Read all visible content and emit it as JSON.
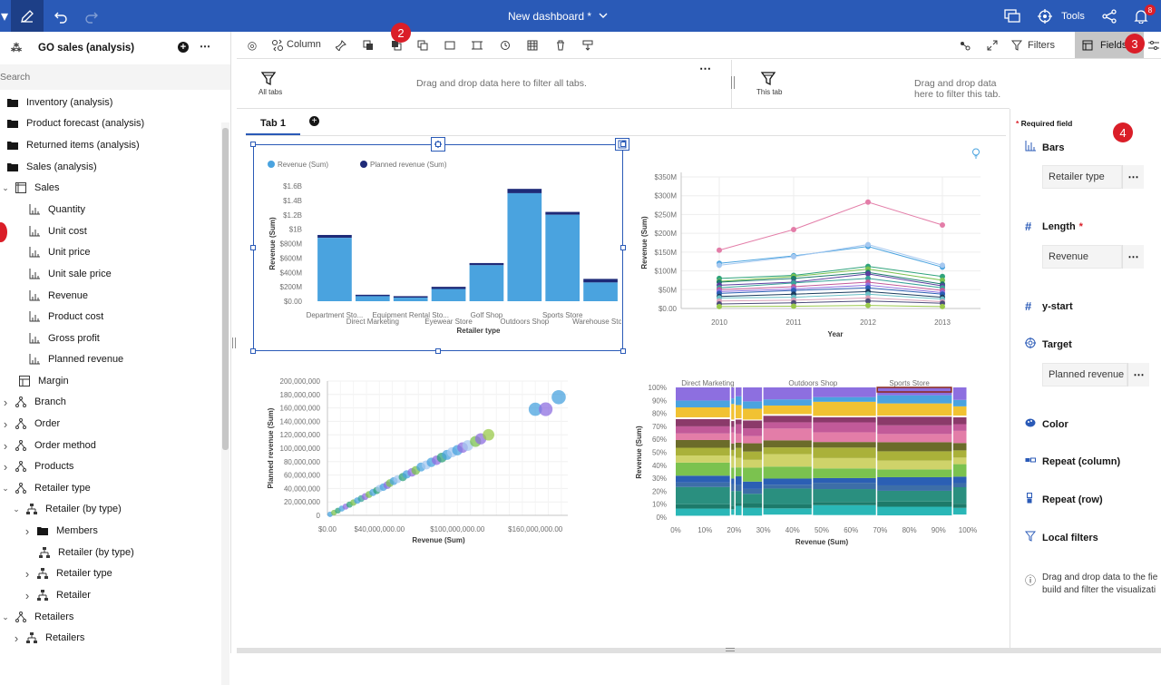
{
  "topbar": {
    "title": "New dashboard *",
    "tools_label": "Tools",
    "notification_count": "8"
  },
  "left_panel": {
    "source_title": "GO sales (analysis)",
    "search_placeholder": "Search",
    "tree": [
      {
        "label": "Inventory (analysis)",
        "icon": "folder-icon"
      },
      {
        "label": "Product forecast (analysis)",
        "icon": "folder-icon"
      },
      {
        "label": "Returned items (analysis)",
        "icon": "folder-icon"
      },
      {
        "label": "Sales (analysis)",
        "icon": "folder-icon"
      },
      {
        "label": "Sales",
        "icon": "table-icon"
      },
      {
        "label": "Quantity",
        "icon": "measure-icon"
      },
      {
        "label": "Unit cost",
        "icon": "measure-icon"
      },
      {
        "label": "Unit price",
        "icon": "measure-icon"
      },
      {
        "label": "Unit sale price",
        "icon": "measure-icon"
      },
      {
        "label": "Revenue",
        "icon": "measure-icon"
      },
      {
        "label": "Product cost",
        "icon": "measure-icon"
      },
      {
        "label": "Gross profit",
        "icon": "measure-icon"
      },
      {
        "label": "Planned revenue",
        "icon": "measure-icon"
      },
      {
        "label": "Margin",
        "icon": "calc-icon"
      },
      {
        "label": "Branch",
        "icon": "hierarchy-icon"
      },
      {
        "label": "Order",
        "icon": "hierarchy-icon"
      },
      {
        "label": "Order method",
        "icon": "hierarchy-icon"
      },
      {
        "label": "Products",
        "icon": "hierarchy-icon"
      },
      {
        "label": "Retailer type",
        "icon": "hierarchy-icon"
      },
      {
        "label": "Retailer (by type)",
        "icon": "level-icon"
      },
      {
        "label": "Members",
        "icon": "folder-icon"
      },
      {
        "label": "Retailer (by type)",
        "icon": "level-icon"
      },
      {
        "label": "Retailer type",
        "icon": "level-icon"
      },
      {
        "label": "Retailer",
        "icon": "level-icon"
      },
      {
        "label": "Retailers",
        "icon": "hierarchy-icon"
      },
      {
        "label": "Retailers",
        "icon": "level-icon"
      }
    ]
  },
  "toolbar": {
    "viz_type_label": "Column",
    "filters_label": "Filters",
    "fields_label": "Fields"
  },
  "callouts": {
    "c2": "2",
    "c3": "3",
    "c4": "4"
  },
  "filter_band": {
    "all_tabs_label": "All tabs",
    "all_tabs_hint": "Drag and drop data here to filter all tabs.",
    "this_tab_label": "This tab",
    "this_tab_hint": "Drag and drop data here to filter this tab."
  },
  "tabs": [
    {
      "label": "Tab 1",
      "active": true
    }
  ],
  "fields_panel": {
    "required_note": "Required field",
    "slots": [
      {
        "label": "Bars",
        "value": "Retailer type"
      },
      {
        "label": "Length",
        "value": "Revenue",
        "required": "*"
      },
      {
        "label": "y-start",
        "value": ""
      },
      {
        "label": "Target",
        "value": "Planned revenue"
      },
      {
        "label": "Color",
        "value": ""
      },
      {
        "label": "Repeat (column)",
        "value": ""
      },
      {
        "label": "Repeat (row)",
        "value": ""
      },
      {
        "label": "Local filters",
        "value": ""
      }
    ],
    "hint": "Drag and drop data to the fie build and filter the visualizati"
  },
  "chart_data": [
    {
      "type": "bar",
      "legend": [
        "Revenue (Sum)",
        "Planned revenue (Sum)"
      ],
      "legend_placement": "top-left",
      "colors": {
        "revenue": "#4aa3df",
        "planned": "#1e2a78"
      },
      "categories": [
        "Department Sto...",
        "Direct Marketing",
        "Equipment Rental Sto...",
        "Eyewear Store",
        "Golf Shop",
        "Outdoors Shop",
        "Sports Store",
        "Warehouse Store"
      ],
      "series": [
        {
          "name": "Revenue (Sum)",
          "values": [
            880000000,
            70000000,
            50000000,
            170000000,
            500000000,
            1500000000,
            1200000000,
            260000000
          ]
        },
        {
          "name": "Planned revenue (Sum)",
          "values": [
            920000000,
            90000000,
            70000000,
            200000000,
            530000000,
            1560000000,
            1240000000,
            310000000
          ]
        }
      ],
      "yticks": [
        "$0.00",
        "$200M",
        "$400M",
        "$600M",
        "$800M",
        "$1B",
        "$1.2B",
        "$1.4B",
        "$1.6B"
      ],
      "ylim": [
        0,
        1600000000
      ],
      "xlabel": "Retailer type",
      "ylabel": "Revenue (Sum)"
    },
    {
      "type": "line",
      "x": [
        "2010",
        "2011",
        "2012",
        "2013"
      ],
      "series_colors": [
        "#e37da8",
        "#4aa3df",
        "#a5c8f0",
        "#2fa37b",
        "#7bc24f",
        "#1b7a6e",
        "#5a3e9f",
        "#3aa39a",
        "#c25a99",
        "#8d6fe0",
        "#2b5fb4",
        "#1b3c5e",
        "#6ac0c6",
        "#d9a0b8",
        "#4c4c7a",
        "#9ac94b"
      ],
      "series": [
        {
          "values": [
            155,
            210,
            283,
            222
          ]
        },
        {
          "values": [
            120,
            140,
            165,
            110
          ]
        },
        {
          "values": [
            115,
            138,
            170,
            115
          ]
        },
        {
          "values": [
            80,
            88,
            112,
            85
          ]
        },
        {
          "values": [
            72,
            85,
            105,
            75
          ]
        },
        {
          "values": [
            70,
            80,
            96,
            65
          ]
        },
        {
          "values": [
            62,
            70,
            92,
            60
          ]
        },
        {
          "values": [
            55,
            68,
            80,
            55
          ]
        },
        {
          "values": [
            50,
            58,
            70,
            48
          ]
        },
        {
          "values": [
            45,
            52,
            62,
            42
          ]
        },
        {
          "values": [
            40,
            48,
            55,
            38
          ]
        },
        {
          "values": [
            32,
            38,
            45,
            30
          ]
        },
        {
          "values": [
            28,
            30,
            38,
            25
          ]
        },
        {
          "values": [
            20,
            22,
            28,
            18
          ]
        },
        {
          "values": [
            12,
            15,
            20,
            14
          ]
        },
        {
          "values": [
            5,
            6,
            8,
            5
          ]
        }
      ],
      "yticks": [
        "$0.00",
        "$50M",
        "$100M",
        "$150M",
        "$200M",
        "$250M",
        "$300M",
        "$350M"
      ],
      "ylim": [
        0,
        350
      ],
      "xlabel": "Year",
      "ylabel": "Revenue (Sum)"
    },
    {
      "type": "scatter",
      "points": [
        [
          2,
          1.5,
          "#4aa3df"
        ],
        [
          5,
          4,
          "#7bc24f"
        ],
        [
          8,
          7,
          "#2fa37b"
        ],
        [
          11,
          10,
          "#4aa3df"
        ],
        [
          14,
          13,
          "#8d6fe0"
        ],
        [
          17,
          16,
          "#2fa37b"
        ],
        [
          20,
          19,
          "#7bc24f"
        ],
        [
          23,
          22,
          "#4aa3df"
        ],
        [
          26,
          25,
          "#3aa39a"
        ],
        [
          29,
          28,
          "#8d6fe0"
        ],
        [
          32,
          31,
          "#7bc24f"
        ],
        [
          35,
          34,
          "#4aa3df"
        ],
        [
          38,
          37,
          "#2fa37b"
        ],
        [
          40,
          40,
          "#a5c8f0"
        ],
        [
          43,
          42,
          "#4aa3df"
        ],
        [
          46,
          45,
          "#8d6fe0"
        ],
        [
          48,
          48,
          "#7bc24f"
        ],
        [
          51,
          51,
          "#4aa3df"
        ],
        [
          54,
          54,
          "#a5c8f0"
        ],
        [
          58,
          57,
          "#2fa37b"
        ],
        [
          61,
          61,
          "#4aa3df"
        ],
        [
          65,
          64,
          "#8d6fe0"
        ],
        [
          68,
          67,
          "#7bc24f"
        ],
        [
          72,
          72,
          "#4aa3df"
        ],
        [
          76,
          75,
          "#a5c8f0"
        ],
        [
          80,
          79,
          "#4aa3df"
        ],
        [
          84,
          82,
          "#8d6fe0"
        ],
        [
          88,
          86,
          "#2fa37b"
        ],
        [
          92,
          90,
          "#4aa3df"
        ],
        [
          96,
          94,
          "#a5c8f0"
        ],
        [
          100,
          97,
          "#4aa3df"
        ],
        [
          104,
          101,
          "#8d6fe0"
        ],
        [
          108,
          104,
          "#a5c8f0"
        ],
        [
          114,
          110,
          "#7bc24f"
        ],
        [
          118,
          114,
          "#8d6fe0"
        ],
        [
          124,
          120,
          "#9ac94b"
        ],
        [
          160,
          158,
          "#4aa3df"
        ],
        [
          168,
          158,
          "#8d6fe0"
        ],
        [
          178,
          176,
          "#4aa3df"
        ]
      ],
      "xticks": [
        "$0.00",
        "$40,000,000.00",
        "$100,000,000.00",
        "$160,000,000.00"
      ],
      "yticks": [
        "0",
        "20,000,000",
        "40,000,000",
        "60,000,000",
        "80,000,000",
        "100,000,000",
        "120,000,000",
        "140,000,000",
        "160,000,000",
        "180,000,000",
        "200,000,000"
      ],
      "xlabel": "Revenue (Sum)",
      "ylabel": "Planned revenue (Sum)"
    },
    {
      "type": "area",
      "top_labels": [
        "Direct Marketing",
        "Outdoors Shop",
        "Sports Store"
      ],
      "columns": [
        0,
        0.19,
        0.205,
        0.23,
        0.3,
        0.47,
        0.69,
        0.95,
        1.0
      ],
      "layers": [
        "#ffffff",
        "#2ab7b7",
        "#1d7a6a",
        "#2a8f7f",
        "#3d6ea8",
        "#2b5fb4",
        "#7bc24f",
        "#cfd36a",
        "#aab13a",
        "#6b6b2a",
        "#e37da8",
        "#c25a99",
        "#8b3a6a",
        "#ffffff",
        "#f1c232",
        "#4aa3df",
        "#8d6fe0"
      ],
      "yticks": [
        "0%",
        "10%",
        "20%",
        "30%",
        "40%",
        "50%",
        "60%",
        "70%",
        "80%",
        "90%",
        "100%"
      ],
      "xticks": [
        "0%",
        "10%",
        "20%",
        "30%",
        "40%",
        "50%",
        "60%",
        "70%",
        "80%",
        "90%",
        "100%"
      ],
      "xlabel": "Revenue (Sum)",
      "ylabel": "Revenue (Sum)"
    }
  ]
}
